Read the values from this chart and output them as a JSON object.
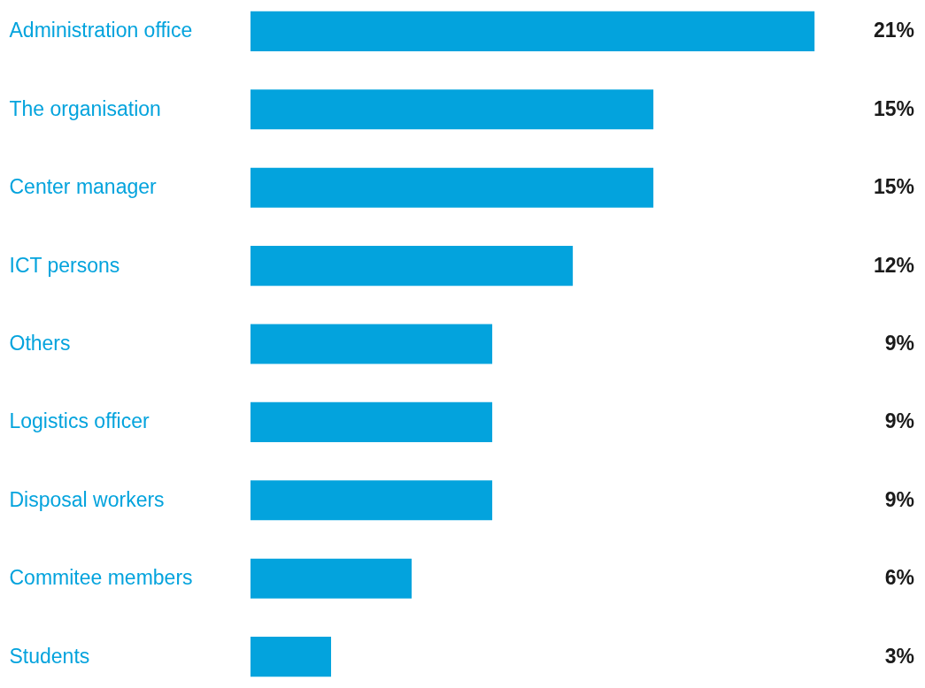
{
  "chart_data": {
    "type": "bar",
    "orientation": "horizontal",
    "categories": [
      "Administration office",
      "The organisation",
      "Center manager",
      "ICT persons",
      "Others",
      "Logistics officer",
      "Disposal workers",
      "Commitee members",
      "Students"
    ],
    "values": [
      21,
      15,
      15,
      12,
      9,
      9,
      9,
      6,
      3
    ],
    "value_labels": [
      "21%",
      "15%",
      "15%",
      "12%",
      "9%",
      "9%",
      "9%",
      "6%",
      "3%"
    ],
    "color": "#03a3dd"
  }
}
